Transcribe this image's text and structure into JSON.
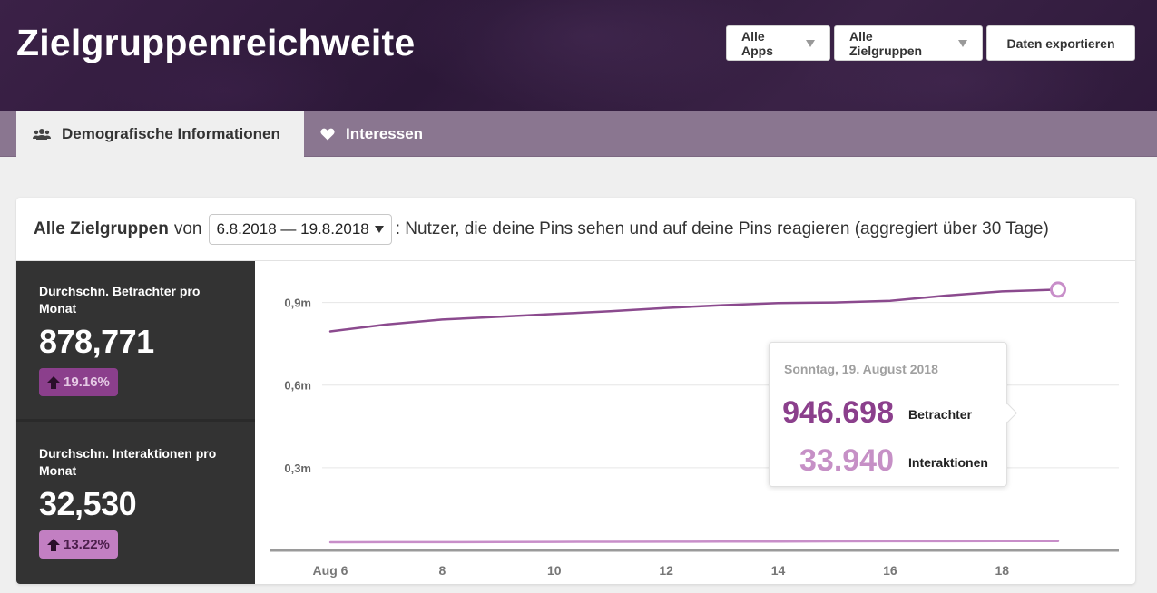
{
  "header": {
    "title": "Zielgruppenreichweite",
    "buttons": {
      "apps": "Alle Apps",
      "groups": "Alle Zielgruppen",
      "export": "Daten exportieren"
    }
  },
  "tabs": [
    {
      "label": "Demografische Informationen",
      "icon": "people-icon",
      "active": true
    },
    {
      "label": "Interessen",
      "icon": "heart-icon",
      "active": false
    }
  ],
  "card": {
    "title": "Alle Zielgruppen",
    "von": "von",
    "date_range": "6.8.2018 — 19.8.2018",
    "description": ": Nutzer, die deine Pins sehen und auf deine Pins reagieren (aggregiert über 30 Tage)"
  },
  "stats": {
    "viewers": {
      "label": "Durchschn. Betrachter pro Monat",
      "value": "878,771",
      "change": "19.16%"
    },
    "interactions": {
      "label": "Durchschn. Interaktionen pro Monat",
      "value": "32,530",
      "change": "13.22%"
    }
  },
  "tooltip": {
    "date": "Sonntag, 19. August 2018",
    "viewers_value": "946.698",
    "viewers_label": "Betrachter",
    "interactions_value": "33.940",
    "interactions_label": "Interaktionen"
  },
  "colors": {
    "viewers": "#8b4a8e",
    "interactions": "#c88ec9"
  },
  "chart_data": {
    "type": "line",
    "x": [
      "2018-08-06",
      "2018-08-07",
      "2018-08-08",
      "2018-08-09",
      "2018-08-10",
      "2018-08-11",
      "2018-08-12",
      "2018-08-13",
      "2018-08-14",
      "2018-08-15",
      "2018-08-16",
      "2018-08-17",
      "2018-08-18",
      "2018-08-19"
    ],
    "x_ticks": [
      {
        "x": "2018-08-06",
        "label": "Aug 6"
      },
      {
        "x": "2018-08-08",
        "label": "8"
      },
      {
        "x": "2018-08-10",
        "label": "10"
      },
      {
        "x": "2018-08-12",
        "label": "12"
      },
      {
        "x": "2018-08-14",
        "label": "14"
      },
      {
        "x": "2018-08-16",
        "label": "16"
      },
      {
        "x": "2018-08-18",
        "label": "18"
      }
    ],
    "y_ticks": [
      {
        "value": 300000,
        "label": "0,3m"
      },
      {
        "value": 600000,
        "label": "0,6m"
      },
      {
        "value": 900000,
        "label": "0,9m"
      }
    ],
    "ylim": [
      0,
      1050000
    ],
    "grid": true,
    "series": [
      {
        "name": "Betrachter",
        "values": [
          795000,
          820000,
          838000,
          848000,
          858000,
          868000,
          880000,
          890000,
          898000,
          900000,
          906000,
          925000,
          940000,
          946698
        ]
      },
      {
        "name": "Interaktionen",
        "values": [
          29500,
          29800,
          30100,
          30500,
          30900,
          31200,
          31600,
          32000,
          32400,
          32800,
          33100,
          33400,
          33700,
          33940
        ]
      }
    ]
  }
}
